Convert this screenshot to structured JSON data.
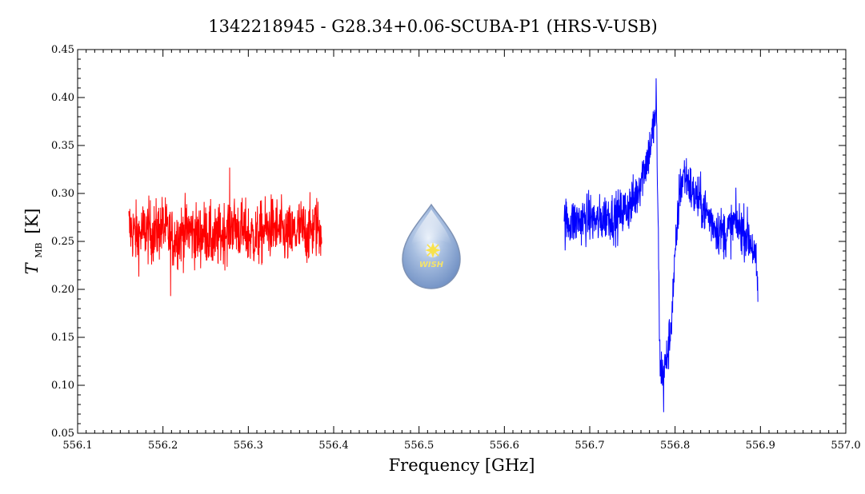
{
  "chart_data": {
    "type": "line",
    "title": "1342218945 - G28.34+0.06-SCUBA-P1 (HRS-V-USB)",
    "xlabel": "Frequency [GHz]",
    "ylabel_main": "T",
    "ylabel_sub": "MB",
    "ylabel_unit": "[K]",
    "xlim": [
      556.1,
      557.0
    ],
    "ylim": [
      0.05,
      0.45
    ],
    "xticks": [
      "556.1",
      "556.2",
      "556.3",
      "556.4",
      "556.5",
      "556.6",
      "556.7",
      "556.8",
      "556.9",
      "557.0"
    ],
    "yticks": [
      "0.05",
      "0.10",
      "0.15",
      "0.20",
      "0.25",
      "0.30",
      "0.35",
      "0.40",
      "0.45"
    ],
    "grid": false,
    "logo_text": "WISH",
    "series": [
      {
        "color": "#ff0000",
        "x": [
          556.16,
          556.17,
          556.18,
          556.19,
          556.2,
          556.21,
          556.22,
          556.23,
          556.24,
          556.25,
          556.26,
          556.27,
          556.28,
          556.29,
          556.3,
          556.31,
          556.32,
          556.33,
          556.34,
          556.35,
          556.36,
          556.37,
          556.38,
          556.386
        ],
        "y": [
          0.265,
          0.255,
          0.262,
          0.258,
          0.266,
          0.252,
          0.257,
          0.263,
          0.255,
          0.26,
          0.25,
          0.258,
          0.268,
          0.262,
          0.257,
          0.254,
          0.262,
          0.266,
          0.258,
          0.255,
          0.263,
          0.259,
          0.266,
          0.262
        ],
        "noise": 0.018,
        "spike_max": 0.327,
        "spike_min": 0.193
      },
      {
        "color": "#0000ff",
        "x": [
          556.67,
          556.68,
          556.69,
          556.7,
          556.71,
          556.72,
          556.73,
          556.74,
          556.75,
          556.755,
          556.76,
          556.765,
          556.77,
          556.775,
          556.778,
          556.78,
          556.782,
          556.785,
          556.79,
          556.795,
          556.8,
          556.805,
          556.81,
          556.815,
          556.82,
          556.83,
          556.84,
          556.85,
          556.86,
          556.87,
          556.88,
          556.89,
          556.895,
          556.897
        ],
        "y": [
          0.27,
          0.27,
          0.272,
          0.275,
          0.27,
          0.278,
          0.275,
          0.282,
          0.29,
          0.3,
          0.315,
          0.33,
          0.345,
          0.37,
          0.39,
          0.28,
          0.13,
          0.11,
          0.125,
          0.16,
          0.23,
          0.3,
          0.32,
          0.315,
          0.3,
          0.29,
          0.275,
          0.262,
          0.258,
          0.27,
          0.262,
          0.248,
          0.222,
          0.2
        ],
        "noise": 0.014,
        "spike_max": 0.42,
        "spike_min": 0.072
      }
    ]
  }
}
